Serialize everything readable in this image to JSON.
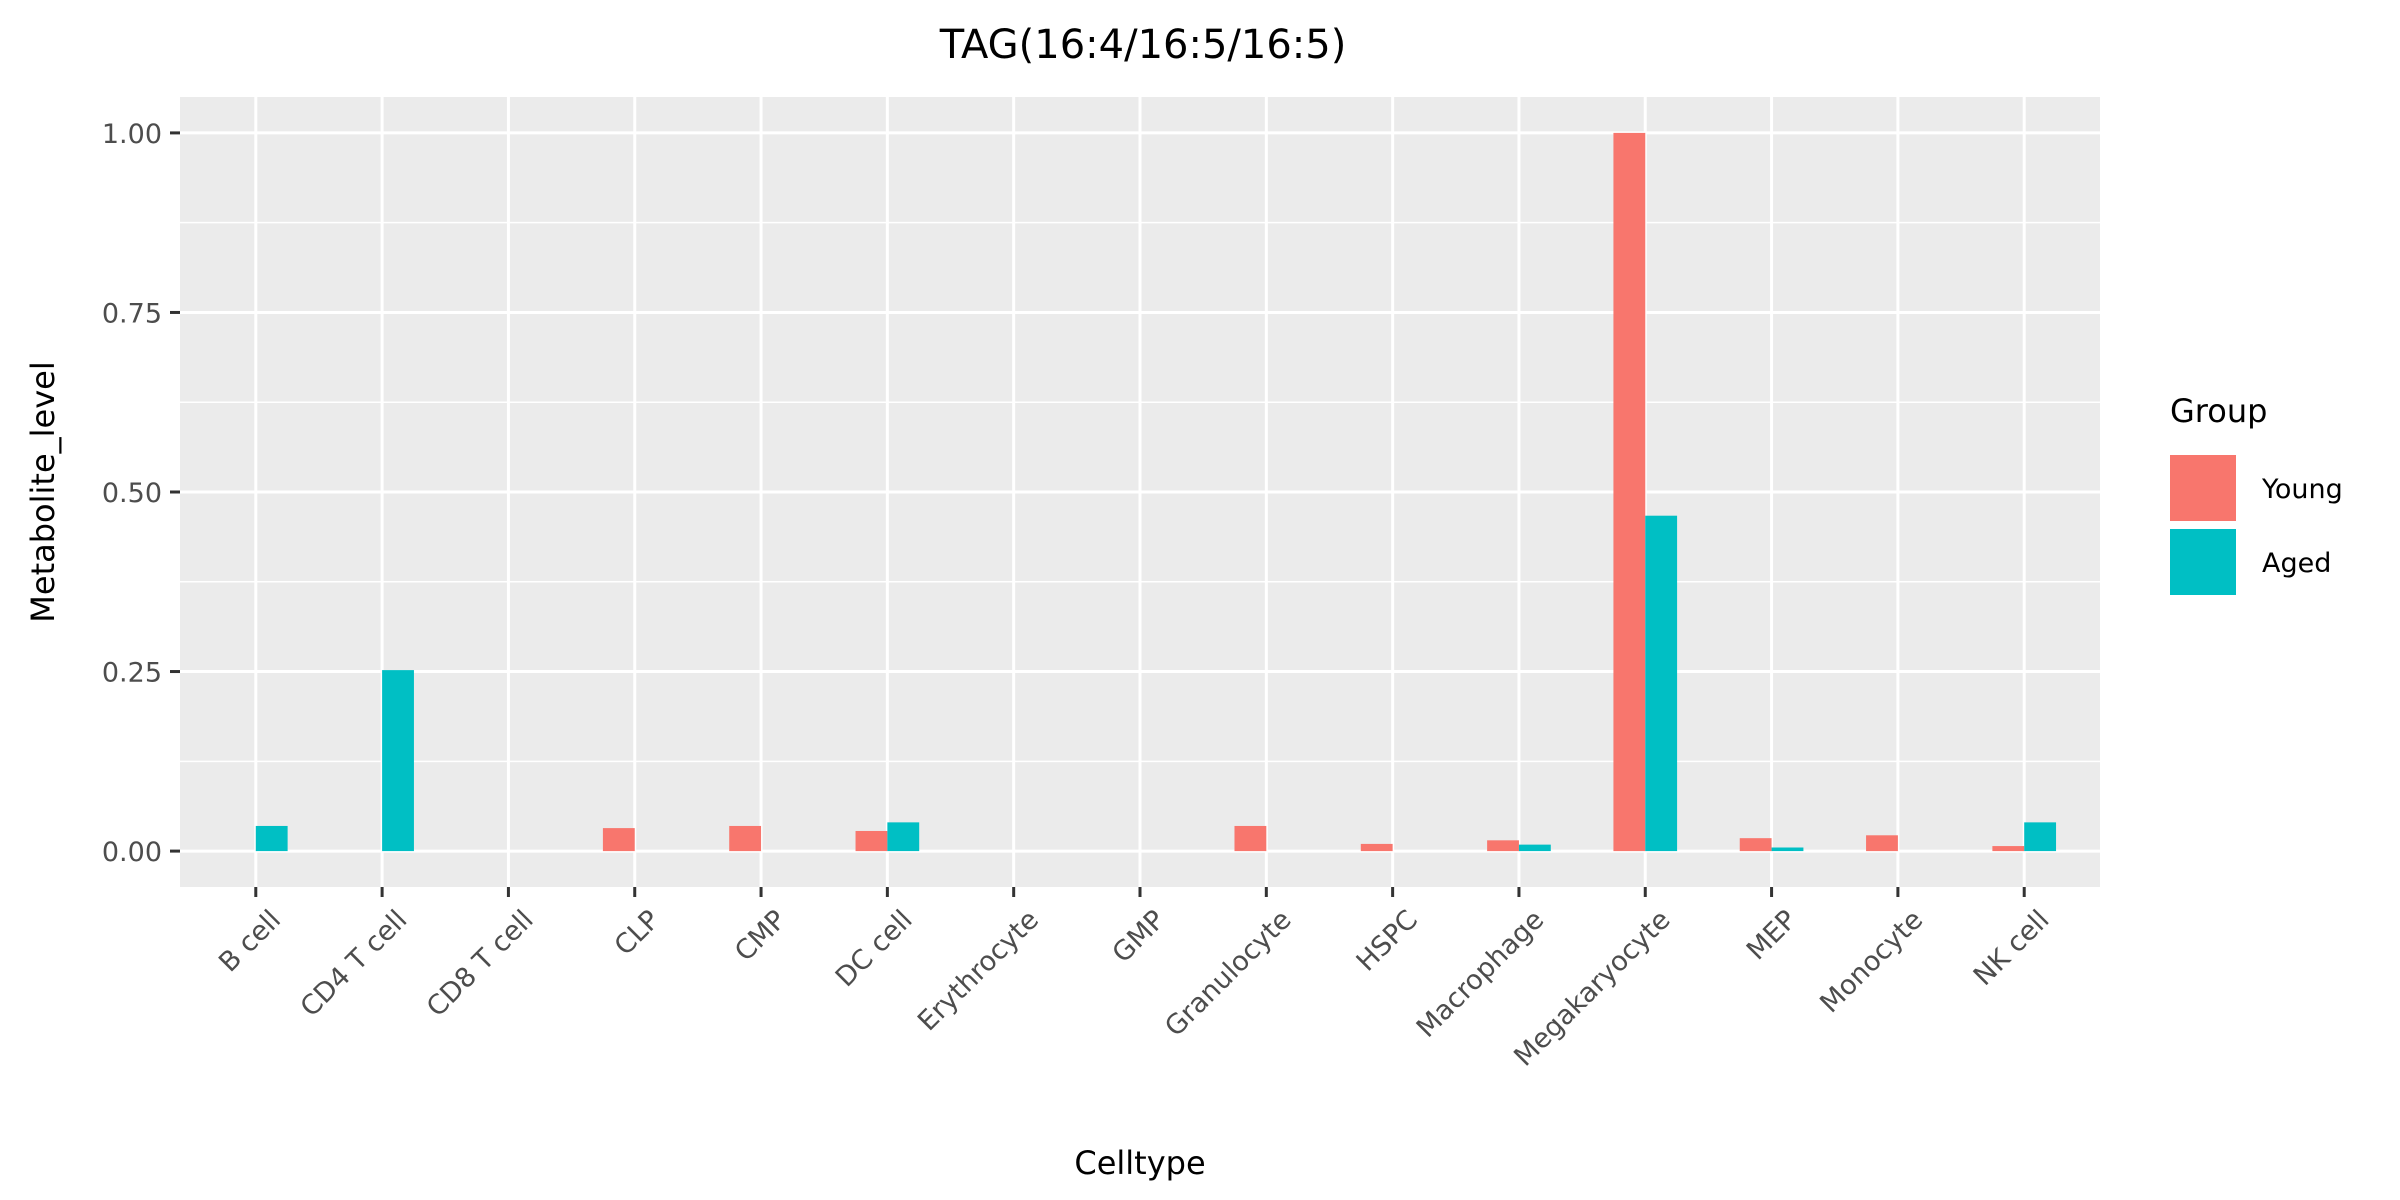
{
  "chart_data": {
    "type": "bar",
    "title": "TAG(16:4/16:5/16:5)",
    "xlabel": "Celltype",
    "ylabel": "Metabolite_level",
    "ylim": [
      -0.05,
      1.05
    ],
    "y_ticks": [
      0.0,
      0.25,
      0.5,
      0.75,
      1.0
    ],
    "y_tick_labels": [
      "0.00",
      "0.25",
      "0.50",
      "0.75",
      "1.00"
    ],
    "grid": true,
    "legend": {
      "title": "Group",
      "position": "right"
    },
    "categories": [
      "B cell",
      "CD4 T cell",
      "CD8 T cell",
      "CLP",
      "CMP",
      "DC cell",
      "Erythrocyte",
      "GMP",
      "Granulocyte",
      "HSPC",
      "Macrophage",
      "Megakaryocyte",
      "MEP",
      "Monocyte",
      "NK cell"
    ],
    "series": [
      {
        "name": "Young",
        "color": "#F8766D",
        "values": [
          0,
          0,
          0,
          0.032,
          0.035,
          0.028,
          0,
          0,
          0.035,
          0.01,
          0.015,
          1.0,
          0.018,
          0.022,
          0.007
        ]
      },
      {
        "name": "Aged",
        "color": "#00BFC4",
        "values": [
          0.035,
          0.252,
          0,
          0,
          0,
          0.04,
          0,
          0,
          0,
          0,
          0.009,
          0.467,
          0.005,
          0,
          0.04
        ]
      }
    ]
  }
}
